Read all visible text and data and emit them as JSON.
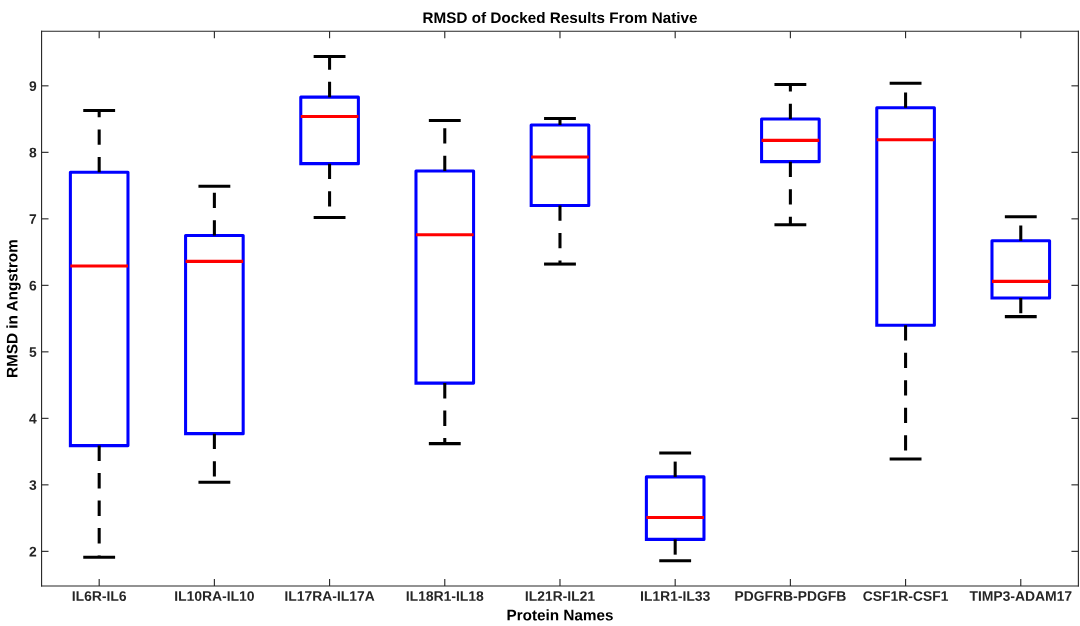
{
  "chart_data": {
    "type": "box",
    "title": "RMSD of Docked Results From Native",
    "xlabel": "Protein Names",
    "ylabel": "RMSD in Angstrom",
    "categories": [
      "IL6R-IL6",
      "IL10RA-IL10",
      "IL17RA-IL17A",
      "IL18R1-IL18",
      "IL21R-IL21",
      "IL1R1-IL33",
      "PDGFRB-PDGFB",
      "CSF1R-CSF1",
      "TIMP3-ADAM17"
    ],
    "ylim": [
      1.48,
      9.82
    ],
    "yticks": [
      2,
      3,
      4,
      5,
      6,
      7,
      8,
      9
    ],
    "grid": false,
    "line_style": "dashed",
    "series": [
      {
        "color": "#0000ff",
        "boxes": [
          {
            "low": 1.91,
            "q1": 3.59,
            "median": 6.29,
            "q3": 7.7,
            "high": 8.63
          },
          {
            "low": 3.04,
            "q1": 3.77,
            "median": 6.36,
            "q3": 6.75,
            "high": 7.49
          },
          {
            "low": 7.02,
            "q1": 7.83,
            "median": 8.54,
            "q3": 8.83,
            "high": 9.44
          },
          {
            "low": 3.62,
            "q1": 4.53,
            "median": 6.76,
            "q3": 7.72,
            "high": 8.48
          },
          {
            "low": 6.32,
            "q1": 7.2,
            "median": 7.93,
            "q3": 8.41,
            "high": 8.51
          },
          {
            "low": 1.86,
            "q1": 2.18,
            "median": 2.51,
            "q3": 3.12,
            "high": 3.48
          },
          {
            "low": 6.91,
            "q1": 7.86,
            "median": 8.18,
            "q3": 8.5,
            "high": 9.02
          },
          {
            "low": 3.39,
            "q1": 5.4,
            "median": 8.19,
            "q3": 8.67,
            "high": 9.04
          },
          {
            "low": 5.53,
            "q1": 5.81,
            "median": 6.06,
            "q3": 6.67,
            "high": 7.03
          }
        ]
      }
    ]
  }
}
